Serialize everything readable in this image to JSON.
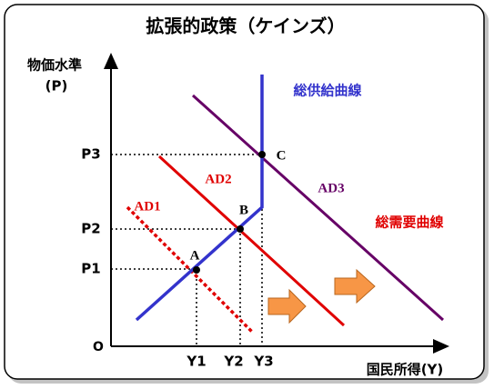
{
  "title": "拡張的政策（ケインズ）",
  "axes": {
    "y_label": "物価水準",
    "y_unit": "(P)",
    "x_label": "国民所得(Y)",
    "origin": "O"
  },
  "price_levels": [
    "P1",
    "P2",
    "P3"
  ],
  "incomes": [
    "Y1",
    "Y2",
    "Y3"
  ],
  "curves": {
    "supply": "総供給曲線",
    "demand": "総需要曲線",
    "ad1": "AD1",
    "ad2": "AD2",
    "ad3": "AD3"
  },
  "points": [
    "A",
    "B",
    "C"
  ]
}
